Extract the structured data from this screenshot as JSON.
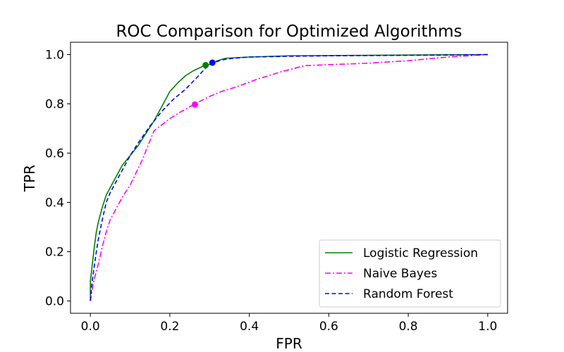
{
  "chart_data": {
    "type": "line",
    "title": "ROC Comparison for Optimized Algorithms",
    "xlabel": "FPR",
    "ylabel": "TPR",
    "xlim": [
      -0.05,
      1.05
    ],
    "ylim": [
      -0.05,
      1.05
    ],
    "xticks": [
      "0.0",
      "0.2",
      "0.4",
      "0.6",
      "0.8",
      "1.0"
    ],
    "yticks": [
      "0.0",
      "0.2",
      "0.4",
      "0.6",
      "0.8",
      "1.0"
    ],
    "grid": false,
    "legend_position": "lower right",
    "series": [
      {
        "name": "Logistic Regression",
        "color": "#008000",
        "style": "solid",
        "x": [
          0.0,
          0.0,
          0.005,
          0.01,
          0.015,
          0.02,
          0.03,
          0.04,
          0.05,
          0.06,
          0.07,
          0.08,
          0.09,
          0.1,
          0.12,
          0.14,
          0.16,
          0.18,
          0.2,
          0.22,
          0.24,
          0.26,
          0.28,
          0.29,
          0.3,
          0.32,
          0.34,
          0.4,
          0.5,
          0.6,
          0.7,
          0.8,
          0.9,
          1.0
        ],
        "y": [
          0.0,
          0.08,
          0.15,
          0.22,
          0.28,
          0.32,
          0.38,
          0.43,
          0.46,
          0.49,
          0.52,
          0.55,
          0.57,
          0.59,
          0.63,
          0.68,
          0.73,
          0.79,
          0.85,
          0.885,
          0.915,
          0.935,
          0.95,
          0.957,
          0.96,
          0.975,
          0.985,
          0.99,
          0.995,
          0.996,
          0.997,
          0.998,
          0.999,
          1.0
        ],
        "marker": {
          "x": 0.29,
          "y": 0.957
        }
      },
      {
        "name": "Naive Bayes",
        "color": "#ff00ff",
        "style": "dashdot",
        "x": [
          0.0,
          0.005,
          0.01,
          0.02,
          0.03,
          0.04,
          0.05,
          0.06,
          0.07,
          0.08,
          0.1,
          0.13,
          0.16,
          0.2,
          0.23,
          0.26,
          0.3,
          0.33,
          0.37,
          0.42,
          0.48,
          0.54,
          0.62,
          0.7,
          0.8,
          0.9,
          1.0
        ],
        "y": [
          0.0,
          0.05,
          0.09,
          0.15,
          0.22,
          0.28,
          0.33,
          0.36,
          0.39,
          0.42,
          0.47,
          0.57,
          0.69,
          0.74,
          0.77,
          0.797,
          0.83,
          0.85,
          0.87,
          0.9,
          0.93,
          0.955,
          0.96,
          0.965,
          0.975,
          0.99,
          1.0
        ],
        "marker": {
          "x": 0.263,
          "y": 0.797
        }
      },
      {
        "name": "Random Forest",
        "color": "#0000ff",
        "style": "dashed",
        "x": [
          0.0,
          0.003,
          0.008,
          0.015,
          0.02,
          0.03,
          0.04,
          0.05,
          0.06,
          0.07,
          0.08,
          0.1,
          0.12,
          0.15,
          0.18,
          0.21,
          0.24,
          0.27,
          0.29,
          0.307,
          0.33,
          0.36,
          0.4,
          0.5,
          0.6,
          0.7,
          0.8,
          0.9,
          1.0
        ],
        "y": [
          0.0,
          0.06,
          0.12,
          0.2,
          0.25,
          0.33,
          0.4,
          0.44,
          0.47,
          0.5,
          0.53,
          0.59,
          0.64,
          0.71,
          0.77,
          0.82,
          0.86,
          0.91,
          0.945,
          0.965,
          0.978,
          0.985,
          0.99,
          0.993,
          0.995,
          0.996,
          0.997,
          0.998,
          1.0
        ],
        "marker": {
          "x": 0.307,
          "y": 0.967
        }
      }
    ]
  }
}
